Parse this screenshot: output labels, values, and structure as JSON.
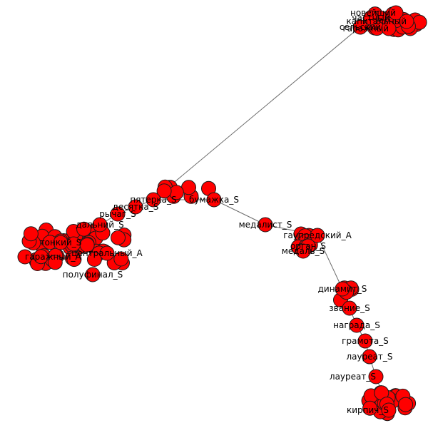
{
  "diagram": {
    "type": "network-graph",
    "colors": {
      "node_fill": "#ff0000",
      "node_stroke": "#1a1a1a",
      "edge": "#6b6b6b",
      "label": "#000000"
    },
    "clusters": [
      {
        "id": "top-right",
        "labels": [
          "частный",
          "новейший",
          "сельский",
          "гаражный",
          "капитальный"
        ]
      },
      {
        "id": "left",
        "labels": [
          "десятка_S",
          "пятерка_S",
          "рычаг_S",
          "дальний_S",
          "тонкий_S",
          "центральный_A",
          "полуфинал_S"
        ]
      },
      {
        "id": "middle",
        "labels": [
          "медалист_S",
          "гаупредский_A",
          "орган_S",
          "медаль_S"
        ]
      },
      {
        "id": "bottom",
        "labels": [
          "динамит_S",
          "звание_S",
          "награда_S",
          "грамота_S",
          "лауреат_S",
          "лауреат_S",
          "кирпич_S"
        ]
      }
    ],
    "nodes": [
      {
        "id": "n1",
        "label": "частный"
      },
      {
        "id": "n2",
        "label": "новейший"
      },
      {
        "id": "n3",
        "label": "сельский"
      },
      {
        "id": "n4",
        "label": "гаражный"
      },
      {
        "id": "n5",
        "label": "капитальный"
      },
      {
        "id": "n6",
        "label": "пятерка_S"
      },
      {
        "id": "n7",
        "label": "десятка_S"
      },
      {
        "id": "n8",
        "label": "рычаг_S"
      },
      {
        "id": "n9",
        "label": "бумажка_S"
      },
      {
        "id": "n10",
        "label": "дальний_S"
      },
      {
        "id": "n11",
        "label": "тонкий_S"
      },
      {
        "id": "n12",
        "label": "центральный_A"
      },
      {
        "id": "n13",
        "label": "полуфинал_S"
      },
      {
        "id": "n14",
        "label": "гаражный_A"
      },
      {
        "id": "n15",
        "label": "медалист_S"
      },
      {
        "id": "n16",
        "label": "гаупредский_A"
      },
      {
        "id": "n17",
        "label": "орган_S"
      },
      {
        "id": "n18",
        "label": "медаль_S"
      },
      {
        "id": "n19",
        "label": "динамит_S"
      },
      {
        "id": "n20",
        "label": "звание_S"
      },
      {
        "id": "n21",
        "label": "награда_S"
      },
      {
        "id": "n22",
        "label": "грамота_S"
      },
      {
        "id": "n23",
        "label": "лауреат_S"
      },
      {
        "id": "n24",
        "label": "лауреат_S"
      },
      {
        "id": "n25",
        "label": "кирпич_S"
      }
    ]
  }
}
